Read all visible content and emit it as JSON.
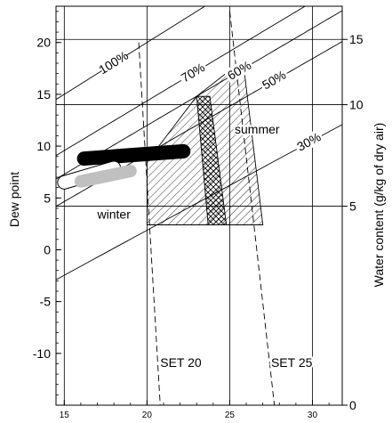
{
  "chart_data": {
    "type": "line",
    "title": "",
    "xlabel": "",
    "ylabel": "Dew point",
    "ylabel_right": "Water content (g/kg of dry air)",
    "xlim": [
      14.5,
      31.8
    ],
    "ylim": [
      -15,
      23.5
    ],
    "x_ticks": [
      15,
      20,
      25,
      30
    ],
    "y_ticks_left": [
      20,
      15,
      10,
      5,
      0,
      -5,
      -10
    ],
    "y_ticks_right": [
      {
        "label": "15",
        "dew_point": 20.3
      },
      {
        "label": "10",
        "dew_point": 14.0
      },
      {
        "label": "5",
        "dew_point": 4.2
      },
      {
        "label": "0",
        "dew_point": -15.0
      }
    ],
    "grid": true,
    "rh_curves": [
      {
        "label": "100%",
        "rh": 100
      },
      {
        "label": "70%",
        "rh": 70
      },
      {
        "label": "60%",
        "rh": 60
      },
      {
        "label": "50%",
        "rh": 50
      },
      {
        "label": "30%",
        "rh": 30
      }
    ],
    "set_lines": [
      {
        "label": "SET 20",
        "points": [
          [
            19.5,
            20.0
          ],
          [
            20.8,
            -15.0
          ]
        ]
      },
      {
        "label": "SET 25",
        "points": [
          [
            25.0,
            23.0
          ],
          [
            27.7,
            -15.0
          ]
        ]
      }
    ],
    "zones": [
      {
        "label": "summer",
        "pattern": "hatch",
        "points": [
          [
            20.0,
            8.5
          ],
          [
            23.0,
            14.8
          ],
          [
            25.8,
            18.3
          ],
          [
            27.0,
            2.4
          ],
          [
            20.0,
            2.4
          ]
        ]
      },
      {
        "label": "",
        "pattern": "crosshatch",
        "points": [
          [
            23.0,
            14.8
          ],
          [
            23.8,
            14.8
          ],
          [
            24.8,
            2.4
          ],
          [
            23.7,
            2.4
          ]
        ]
      }
    ],
    "bands": [
      {
        "label": "",
        "color": "#000000",
        "points": [
          [
            16.2,
            8.8
          ],
          [
            22.2,
            9.5
          ]
        ]
      },
      {
        "label": "winter",
        "color": "#c0c0c0",
        "points": [
          [
            16.0,
            6.6
          ],
          [
            19.0,
            7.6
          ]
        ]
      },
      {
        "label": "",
        "color": "#ffffff",
        "points": [
          [
            15.0,
            6.5
          ],
          [
            18.0,
            7.9
          ]
        ]
      }
    ]
  }
}
